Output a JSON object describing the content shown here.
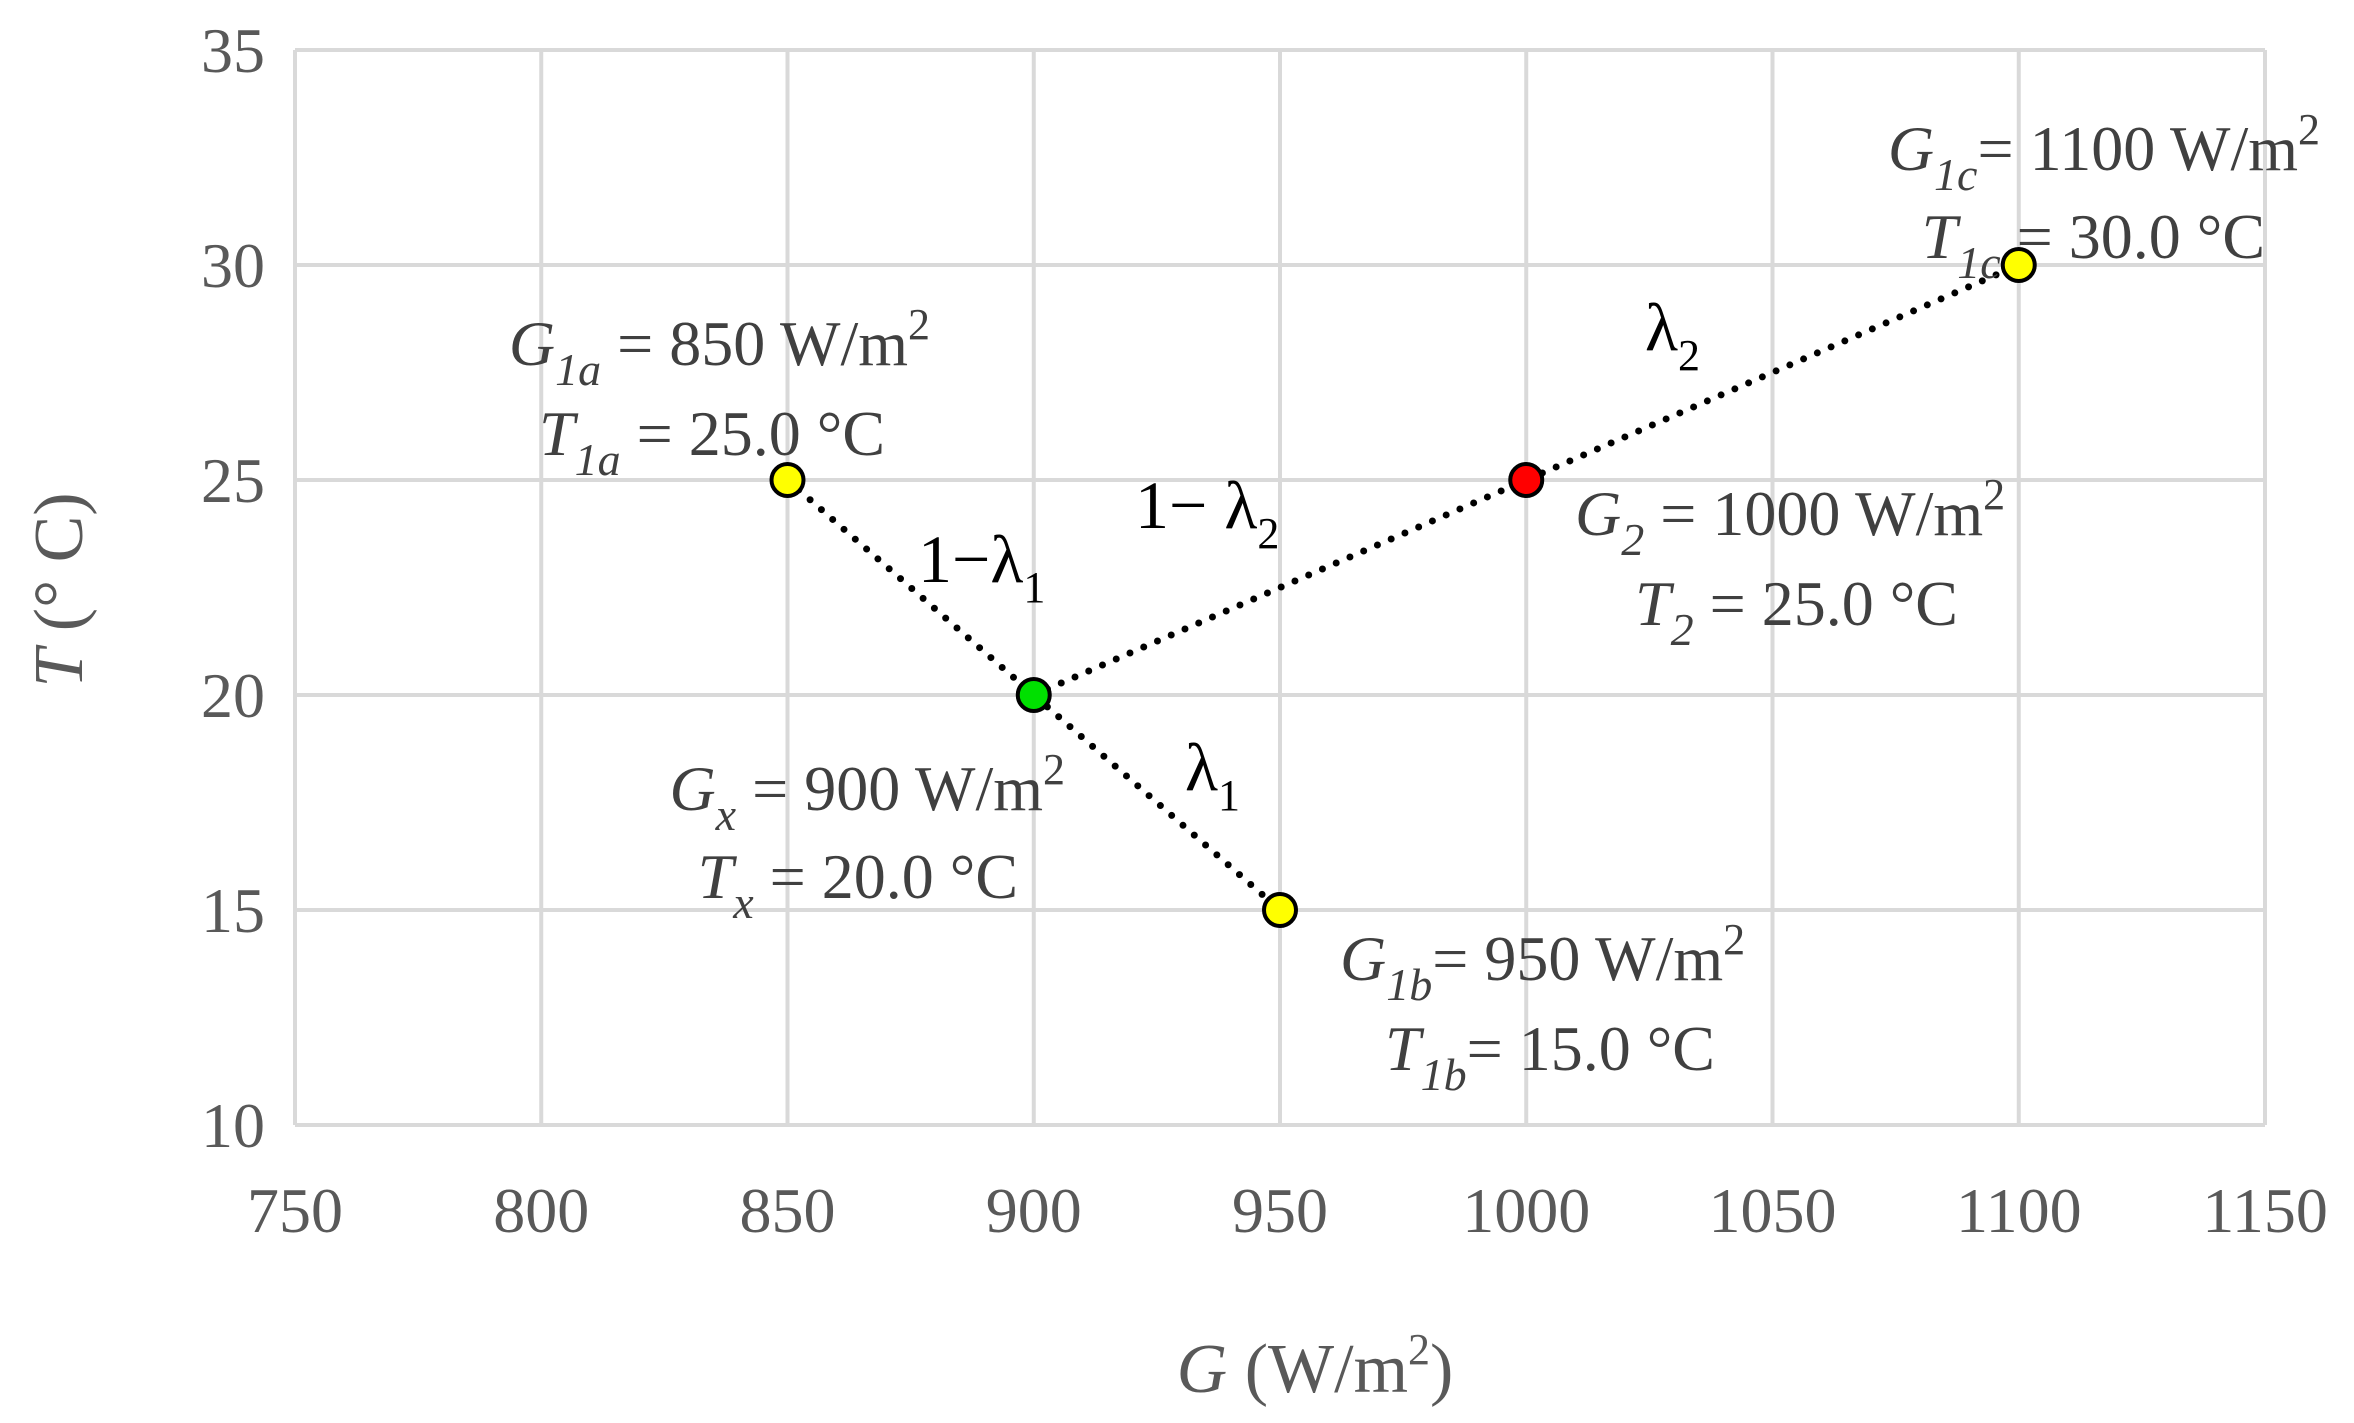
{
  "chart_data": {
    "type": "scatter",
    "xlabel": {
      "var": "G",
      "unit_pre": " (W/m",
      "unit_sup": "2",
      "unit_post": ")"
    },
    "ylabel": {
      "var": "T",
      "unit": " (° C)"
    },
    "xlim": [
      750,
      1150
    ],
    "ylim": [
      10,
      35
    ],
    "xticks": [
      750,
      800,
      850,
      900,
      950,
      1000,
      1050,
      1100,
      1150
    ],
    "yticks": [
      10,
      15,
      20,
      25,
      30,
      35
    ],
    "grid": true,
    "colors": {
      "yellow": "#ffff00",
      "green": "#00e000",
      "red": "#ff0000",
      "grid": "#d9d9d9",
      "line": "#000000"
    },
    "points": [
      {
        "id": "1a",
        "x": 850,
        "y": 25,
        "color": "yellow",
        "label_g": {
          "var": "G",
          "sub": "1a",
          "rest": " = 850 W/m",
          "sup": "2"
        },
        "label_t": {
          "var": "T",
          "sub": "1a",
          "rest": " = 25.0 °C"
        }
      },
      {
        "id": "1b",
        "x": 950,
        "y": 15,
        "color": "yellow",
        "label_g": {
          "var": "G",
          "sub": "1b",
          "rest": "= 950 W/m",
          "sup": "2"
        },
        "label_t": {
          "var": "T",
          "sub": "1b",
          "rest": "= 15.0 °C"
        }
      },
      {
        "id": "1c",
        "x": 1100,
        "y": 30,
        "color": "yellow",
        "label_g": {
          "var": "G",
          "sub": "1c",
          "rest": "= 1100 W/m",
          "sup": "2"
        },
        "label_t": {
          "var": "T",
          "sub": "1c",
          "rest": " = 30.0 °C"
        }
      },
      {
        "id": "x",
        "x": 900,
        "y": 20,
        "color": "green",
        "label_g": {
          "var": "G",
          "sub": "x",
          "rest": " = 900 W/m",
          "sup": "2"
        },
        "label_t": {
          "var": "T",
          "sub": "x",
          "rest": " = 20.0 °C"
        }
      },
      {
        "id": "2",
        "x": 1000,
        "y": 25,
        "color": "red",
        "label_g": {
          "var": "G",
          "sub": "2",
          "rest": " = 1000 W/m",
          "sup": "2"
        },
        "label_t": {
          "var": "T",
          "sub": "2",
          "rest": " = 25.0 °C"
        }
      }
    ],
    "lines": [
      {
        "from": "1a",
        "to": "1b",
        "style": "dotted"
      },
      {
        "from": "x",
        "to": "1c",
        "style": "dotted"
      }
    ],
    "segment_labels": [
      {
        "text": "1−λ",
        "sub": "1"
      },
      {
        "text": "λ",
        "sub": "1"
      },
      {
        "text": "1− λ",
        "sub": "2"
      },
      {
        "text": "λ",
        "sub": "2"
      }
    ]
  }
}
